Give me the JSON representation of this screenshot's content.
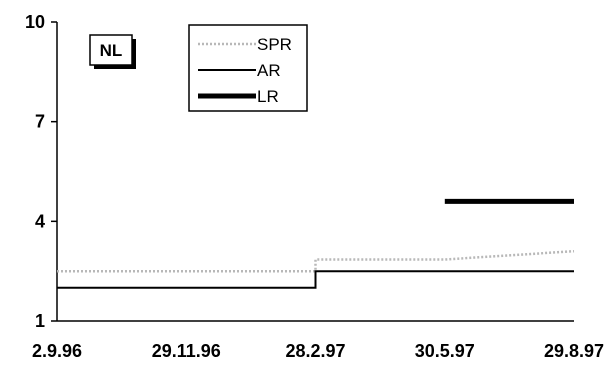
{
  "chart_data": {
    "type": "line",
    "badge": "NL",
    "ylim": [
      1,
      10
    ],
    "y_ticks": [
      "1",
      "4",
      "7",
      "10"
    ],
    "x_ticks": [
      "2.9.96",
      "29.11.96",
      "28.2.97",
      "30.5.97",
      "29.8.97"
    ],
    "legend": {
      "placement": "top-center",
      "entries": [
        "SPR",
        "AR",
        "LR"
      ]
    },
    "series": [
      {
        "name": "SPR",
        "style": "dotted-light",
        "color": "#b8b8b8",
        "points": [
          [
            "2.9.96",
            2.5
          ],
          [
            "28.2.97",
            2.5
          ],
          [
            "28.2.97",
            2.85
          ],
          [
            "30.5.97",
            2.85
          ],
          [
            "29.8.97",
            3.1
          ]
        ]
      },
      {
        "name": "AR",
        "style": "solid",
        "color": "#000000",
        "points": [
          [
            "2.9.96",
            2.0
          ],
          [
            "28.2.97",
            2.0
          ],
          [
            "28.2.97",
            2.5
          ],
          [
            "29.8.97",
            2.5
          ]
        ]
      },
      {
        "name": "LR",
        "style": "thick",
        "color": "#000000",
        "points": [
          [
            "30.5.97",
            4.6
          ],
          [
            "29.8.97",
            4.6
          ]
        ]
      }
    ]
  }
}
